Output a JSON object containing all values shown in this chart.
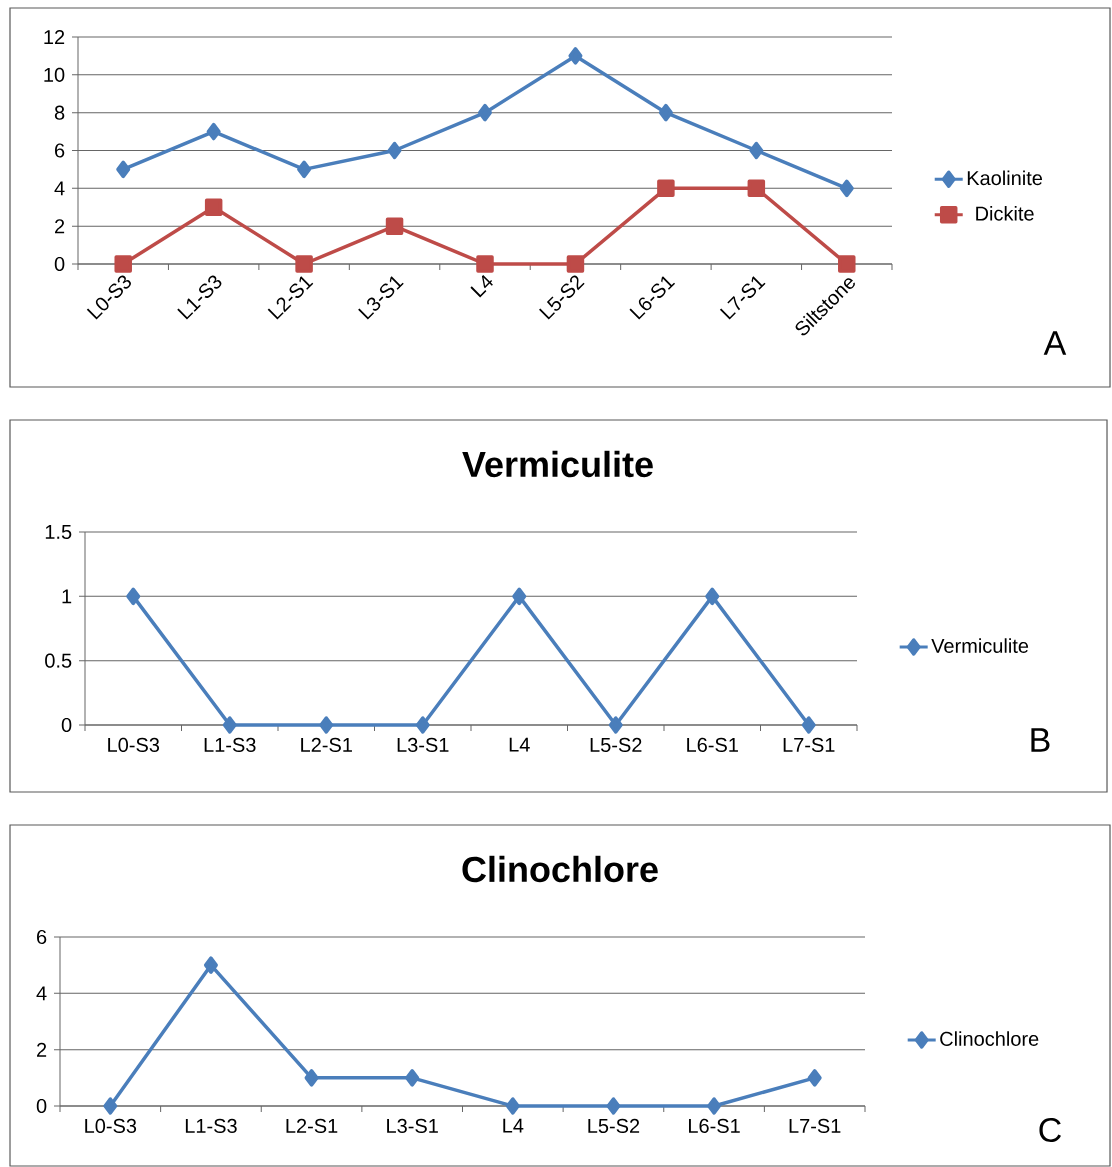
{
  "chart_data": [
    {
      "type": "line",
      "categories": [
        "L0-S3",
        "L1-S3",
        "L2-S1",
        "L3-S1",
        "L4",
        "L5-S2",
        "L6-S1",
        "L7-S1",
        "Siltstone"
      ],
      "series": [
        {
          "name": "Kaolinite",
          "color": "#4a7ebb",
          "marker": "diamond",
          "values": [
            5,
            7,
            5,
            6,
            8,
            11,
            8,
            6,
            4
          ]
        },
        {
          "name": "Dickite",
          "color": "#be4b48",
          "marker": "square",
          "values": [
            0,
            3,
            0,
            2,
            0,
            0,
            4,
            4,
            0
          ]
        }
      ],
      "ylim": [
        0,
        12
      ],
      "yticks": [
        0,
        2,
        4,
        6,
        8,
        10,
        12
      ],
      "grid": "y",
      "legend": "right",
      "annotations": [
        "A"
      ]
    },
    {
      "type": "line",
      "title": "Vermiculite",
      "categories": [
        "L0-S3",
        "L1-S3",
        "L2-S1",
        "L3-S1",
        "L4",
        "L5-S2",
        "L6-S1",
        "L7-S1"
      ],
      "series": [
        {
          "name": "Vermiculite",
          "color": "#4a7ebb",
          "marker": "diamond",
          "values": [
            1,
            0,
            0,
            0,
            1,
            0,
            1,
            0
          ]
        }
      ],
      "ylim": [
        0,
        1.5
      ],
      "yticks": [
        0,
        0.5,
        1,
        1.5
      ],
      "grid": "y",
      "legend": "right",
      "annotations": [
        "B"
      ]
    },
    {
      "type": "line",
      "title": "Clinochlore",
      "categories": [
        "L0-S3",
        "L1-S3",
        "L2-S1",
        "L3-S1",
        "L4",
        "L5-S2",
        "L6-S1",
        "L7-S1"
      ],
      "series": [
        {
          "name": "Clinochlore",
          "color": "#4a7ebb",
          "marker": "diamond",
          "values": [
            0,
            5,
            1,
            1,
            0,
            0,
            0,
            1
          ]
        }
      ],
      "ylim": [
        0,
        6
      ],
      "yticks": [
        0,
        2,
        4,
        6
      ],
      "grid": "y",
      "legend": "right",
      "annotations": [
        "C"
      ]
    }
  ]
}
